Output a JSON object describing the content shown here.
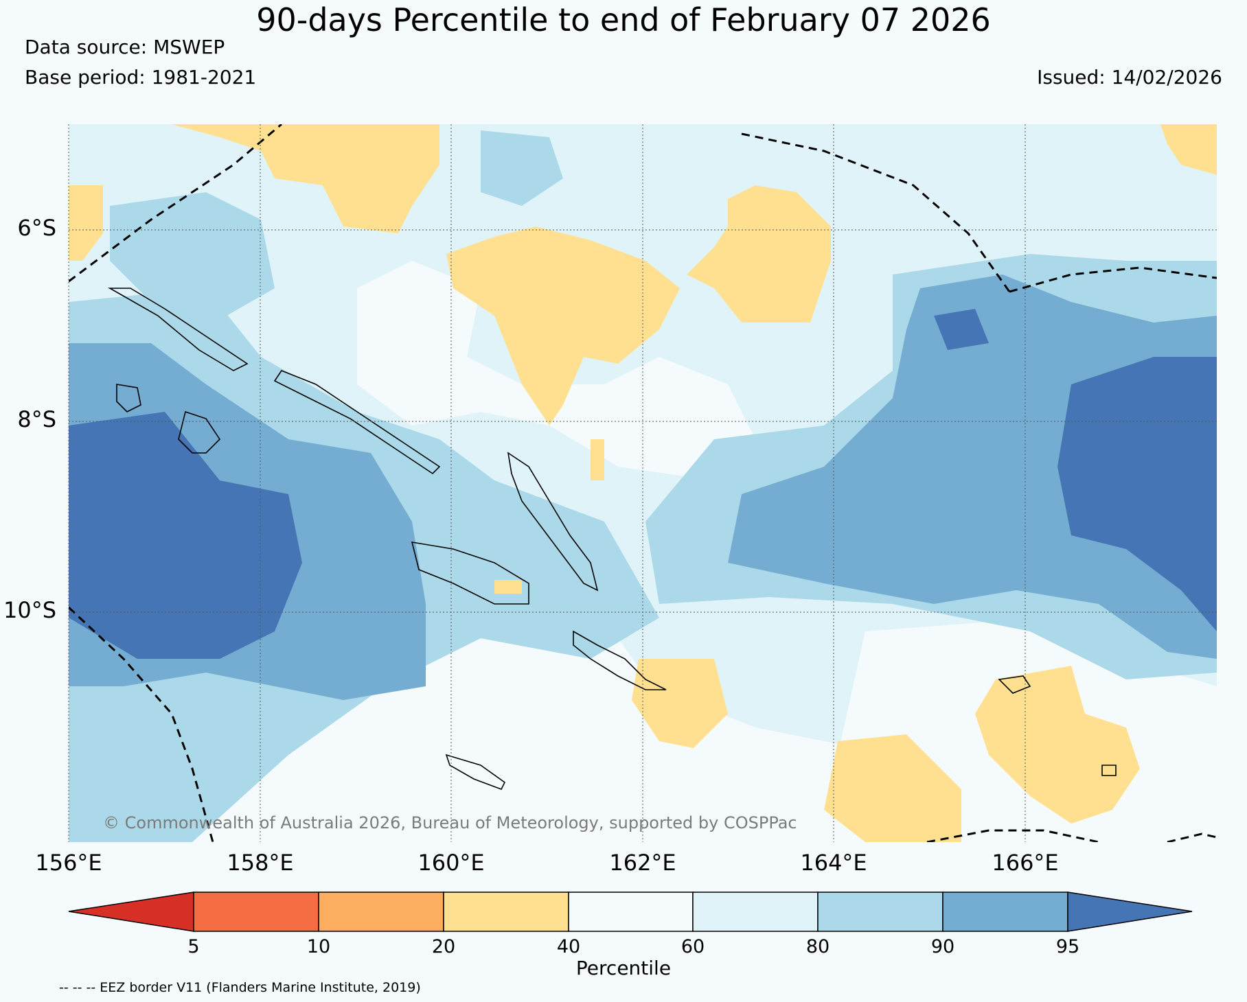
{
  "title": "90-days Percentile to end of February 07 2026",
  "meta": {
    "data_source": "Data source: MSWEP",
    "base_period": "Base period: 1981-2021",
    "issued": "Issued: 14/02/2026"
  },
  "map": {
    "lat_labels": [
      "6°S",
      "8°S",
      "10°S"
    ],
    "lon_labels": [
      "156°E",
      "158°E",
      "160°E",
      "162°E",
      "164°E",
      "166°E"
    ],
    "copyright": "© Commonwealth of Australia 2026, Bureau of Meteorology, supported by COSPPac"
  },
  "colorbar": {
    "title": "Percentile",
    "ticks": [
      "5",
      "10",
      "20",
      "40",
      "60",
      "80",
      "90",
      "95"
    ],
    "colors": [
      "#d73027",
      "#f46d43",
      "#fdae61",
      "#fee090",
      "#f5fbfd",
      "#e0f3f8",
      "#abd9e9",
      "#74add1",
      "#4575b4"
    ]
  },
  "palette": {
    "dry40": "#fee090",
    "normal": "#f5fbfd",
    "wet60": "#e0f3f8",
    "wet80": "#abd9e9",
    "wet90": "#74add1",
    "wet95": "#4575b4"
  },
  "footnote": "-- -- -- EEZ border V11 (Flanders Marine Institute, 2019)"
}
